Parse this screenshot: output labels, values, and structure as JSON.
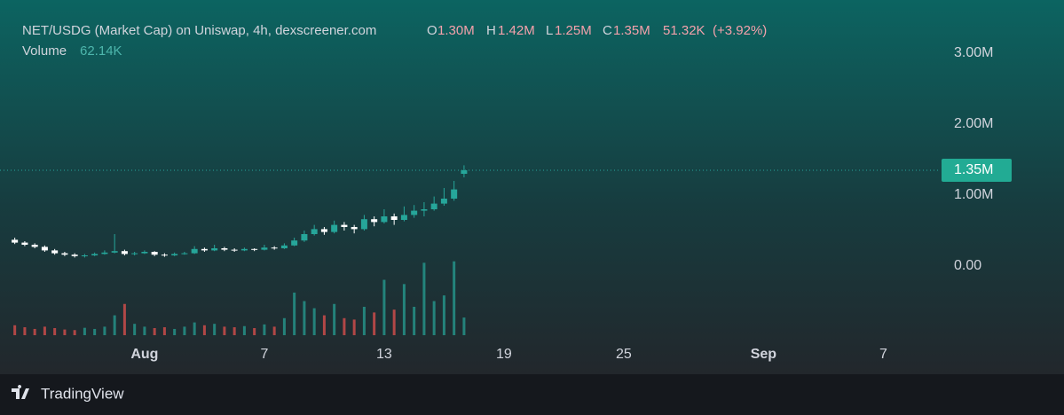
{
  "chart_data": {
    "type": "candlestick",
    "legend": {
      "symbol": "NET/USDG (Market Cap) on Uniswap, 4h, dexscreener.com",
      "o": "O",
      "open": "1.30M",
      "h": "H",
      "high": "1.42M",
      "l": "L",
      "low": "1.25M",
      "c": "C",
      "close": "1.35M",
      "change": "51.32K",
      "change_pct": "(+3.92%)"
    },
    "last_price_label": "1.35M",
    "up_color": "#26a69a",
    "down_color": "#ffffff",
    "volume_up_color": "#26a69a",
    "volume_down_color": "#ef5350",
    "x": [
      -6.5,
      -6,
      -5.5,
      -5,
      -4.5,
      -4,
      -3.5,
      -3,
      -2.5,
      -2,
      -1.5,
      -1,
      -0.5,
      0,
      0.5,
      1,
      1.5,
      2,
      2.5,
      3,
      3.5,
      4,
      4.5,
      5,
      5.5,
      6,
      6.5,
      7,
      7.5,
      8,
      8.5,
      9,
      9.5,
      10,
      10.5,
      11,
      11.5,
      12,
      12.5,
      13,
      13.5,
      14,
      14.5,
      15,
      15.5,
      16
    ],
    "candles": [
      [
        0.37,
        0.4,
        0.31,
        0.33
      ],
      [
        0.33,
        0.35,
        0.28,
        0.3
      ],
      [
        0.3,
        0.32,
        0.25,
        0.27
      ],
      [
        0.27,
        0.29,
        0.2,
        0.22
      ],
      [
        0.22,
        0.24,
        0.16,
        0.18
      ],
      [
        0.18,
        0.2,
        0.14,
        0.16
      ],
      [
        0.16,
        0.18,
        0.12,
        0.14
      ],
      [
        0.14,
        0.17,
        0.12,
        0.15
      ],
      [
        0.15,
        0.19,
        0.14,
        0.17
      ],
      [
        0.17,
        0.22,
        0.16,
        0.19
      ],
      [
        0.19,
        0.45,
        0.18,
        0.21
      ],
      [
        0.21,
        0.23,
        0.15,
        0.17
      ],
      [
        0.17,
        0.2,
        0.15,
        0.18
      ],
      [
        0.18,
        0.22,
        0.17,
        0.2
      ],
      [
        0.2,
        0.21,
        0.14,
        0.16
      ],
      [
        0.16,
        0.18,
        0.13,
        0.15
      ],
      [
        0.15,
        0.19,
        0.14,
        0.17
      ],
      [
        0.17,
        0.2,
        0.16,
        0.18
      ],
      [
        0.18,
        0.28,
        0.17,
        0.24
      ],
      [
        0.24,
        0.26,
        0.2,
        0.22
      ],
      [
        0.22,
        0.3,
        0.21,
        0.25
      ],
      [
        0.25,
        0.27,
        0.21,
        0.23
      ],
      [
        0.23,
        0.25,
        0.2,
        0.22
      ],
      [
        0.22,
        0.26,
        0.21,
        0.24
      ],
      [
        0.24,
        0.25,
        0.21,
        0.23
      ],
      [
        0.23,
        0.3,
        0.22,
        0.26
      ],
      [
        0.26,
        0.28,
        0.23,
        0.25
      ],
      [
        0.25,
        0.32,
        0.24,
        0.29
      ],
      [
        0.29,
        0.4,
        0.28,
        0.36
      ],
      [
        0.36,
        0.5,
        0.34,
        0.45
      ],
      [
        0.45,
        0.58,
        0.43,
        0.52
      ],
      [
        0.52,
        0.55,
        0.44,
        0.48
      ],
      [
        0.48,
        0.64,
        0.46,
        0.58
      ],
      [
        0.58,
        0.62,
        0.5,
        0.55
      ],
      [
        0.55,
        0.58,
        0.46,
        0.52
      ],
      [
        0.52,
        0.72,
        0.5,
        0.66
      ],
      [
        0.66,
        0.7,
        0.56,
        0.62
      ],
      [
        0.62,
        0.8,
        0.6,
        0.7
      ],
      [
        0.7,
        0.74,
        0.58,
        0.65
      ],
      [
        0.65,
        0.84,
        0.63,
        0.72
      ],
      [
        0.72,
        0.86,
        0.68,
        0.78
      ],
      [
        0.78,
        0.9,
        0.7,
        0.8
      ],
      [
        0.8,
        0.98,
        0.78,
        0.88
      ],
      [
        0.88,
        1.1,
        0.85,
        0.95
      ],
      [
        0.95,
        1.2,
        0.92,
        1.08
      ],
      [
        1.3,
        1.42,
        1.25,
        1.35
      ]
    ],
    "volume": {
      "label": "Volume",
      "last_label": "62.14K",
      "values": [
        35,
        28,
        22,
        30,
        25,
        20,
        18,
        26,
        22,
        30,
        70,
        110,
        40,
        30,
        25,
        28,
        22,
        30,
        45,
        35,
        40,
        30,
        28,
        32,
        25,
        38,
        30,
        60,
        150,
        120,
        95,
        70,
        110,
        60,
        55,
        100,
        80,
        195,
        90,
        180,
        100,
        255,
        120,
        140,
        260,
        62.14
      ]
    },
    "volume_ylim": [
      0,
      1180
    ],
    "xlim": [
      -7.24,
      39.87
    ],
    "xticks": [
      {
        "value": 0,
        "label": "Aug"
      },
      {
        "value": 6,
        "label": "7"
      },
      {
        "value": 12,
        "label": "13"
      },
      {
        "value": 18,
        "label": "19"
      },
      {
        "value": 24,
        "label": "25"
      },
      {
        "value": 31,
        "label": "Sep"
      },
      {
        "value": 37,
        "label": "7"
      }
    ],
    "ylim": [
      -1.0625,
      3.75
    ],
    "yticks": [
      {
        "value": 3,
        "label": "3.00M"
      },
      {
        "value": 2,
        "label": "2.00M"
      },
      {
        "value": 1,
        "label": "1.00M"
      },
      {
        "value": 0,
        "label": "0.00"
      }
    ],
    "brand": "TradingView"
  }
}
